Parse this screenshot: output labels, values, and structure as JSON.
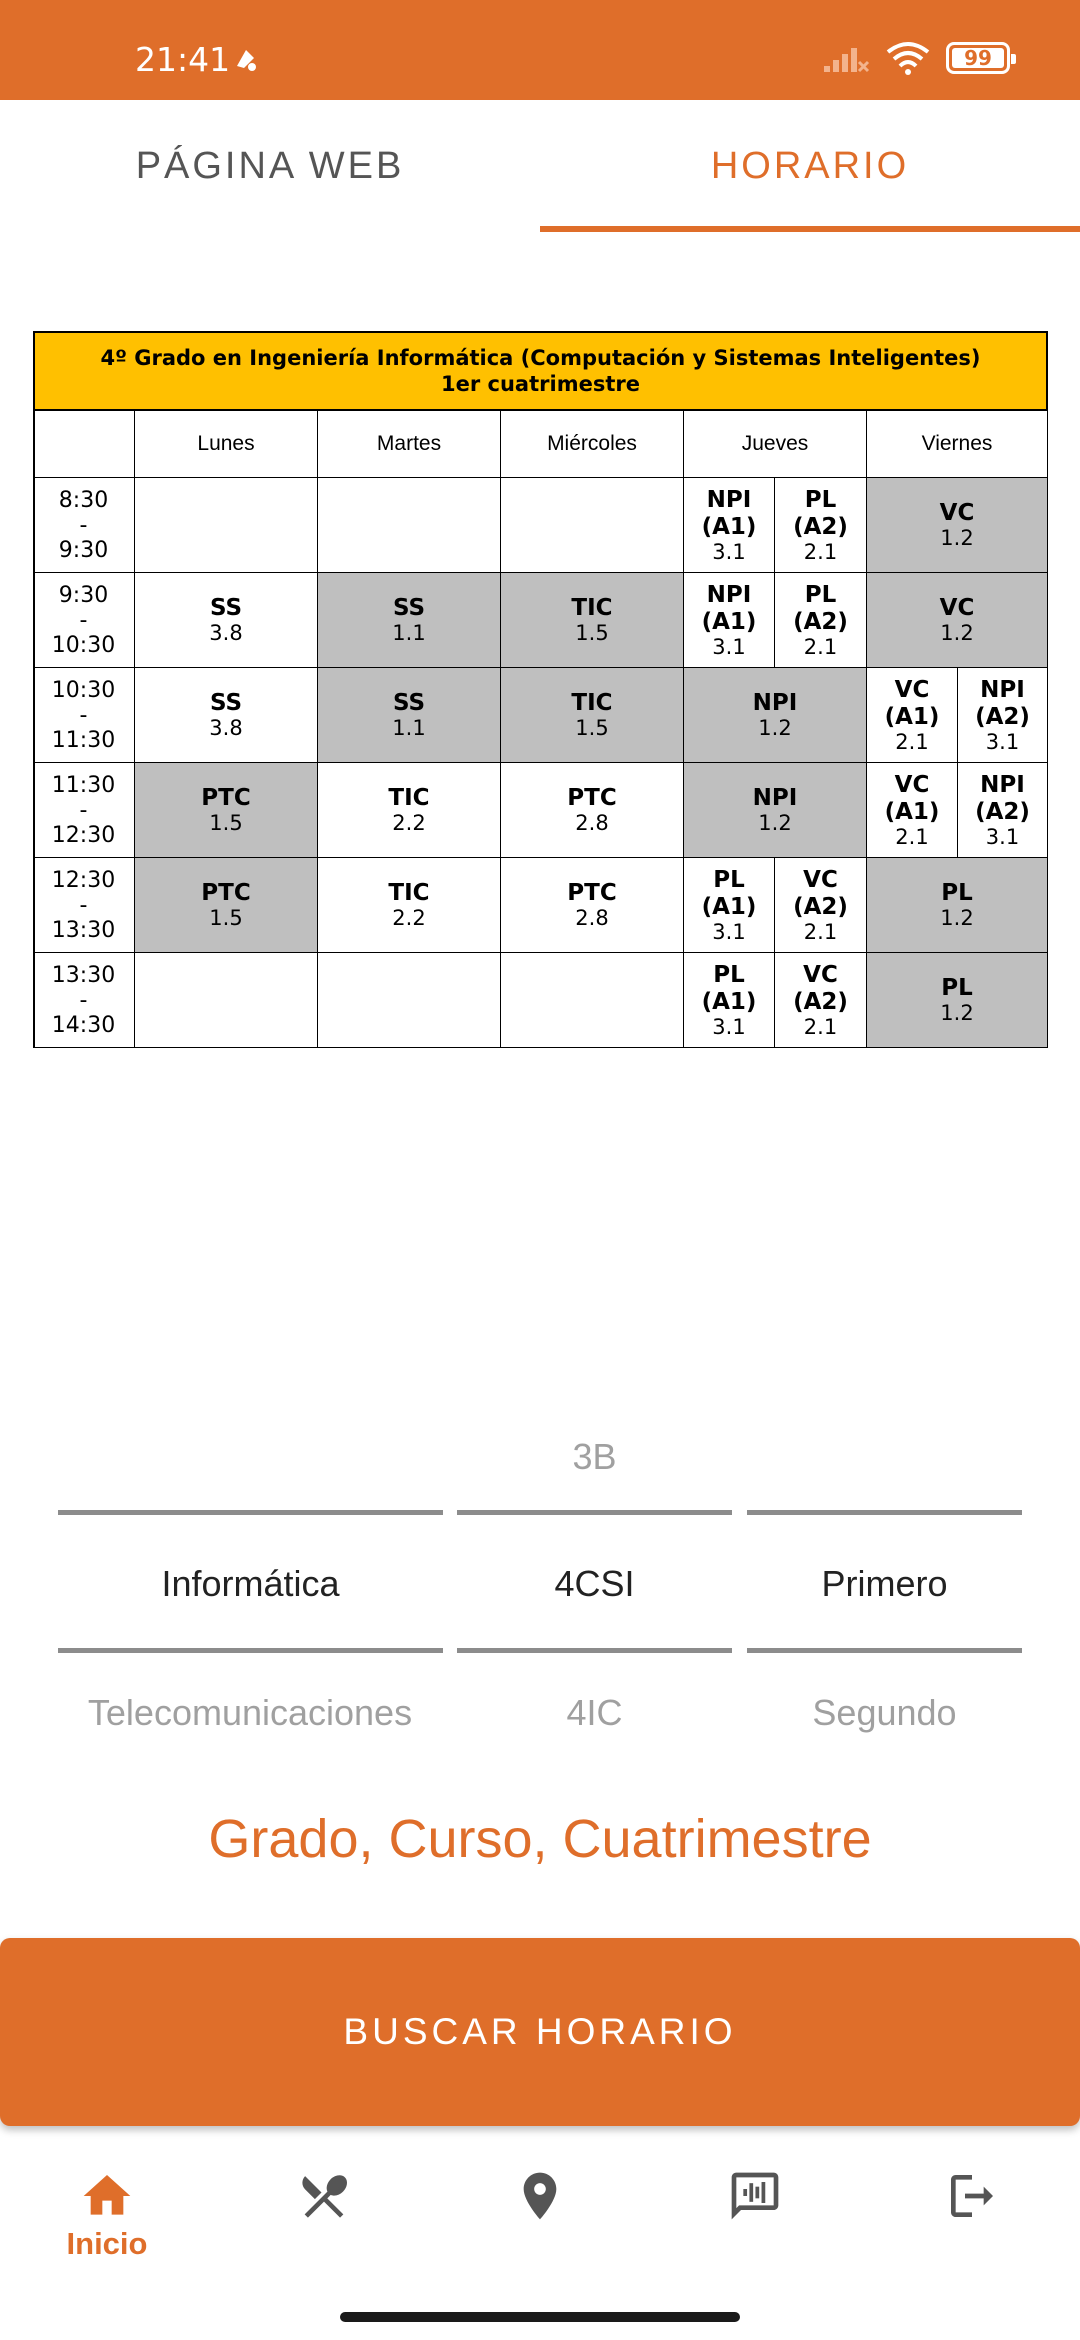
{
  "status_bar": {
    "time": "21:41",
    "battery": "99"
  },
  "tabs": [
    {
      "label": "PÁGINA WEB",
      "active": false
    },
    {
      "label": "HORARIO",
      "active": true
    }
  ],
  "schedule": {
    "title_line1": "4º Grado en Ingeniería  Informática  (Computación  y Sistemas Inteligentes)",
    "title_line2": "1er cuatrimestre",
    "days": [
      "Lunes",
      "Martes",
      "Miércoles",
      "Jueves",
      "Viernes"
    ],
    "times": [
      {
        "start": "8:30",
        "sep": "-",
        "end": "9:30"
      },
      {
        "start": "9:30",
        "sep": "-",
        "end": "10:30"
      },
      {
        "start": "10:30",
        "sep": "-",
        "end": "11:30"
      },
      {
        "start": "11:30",
        "sep": "-",
        "end": "12:30"
      },
      {
        "start": "12:30",
        "sep": "-",
        "end": "13:30"
      },
      {
        "start": "13:30",
        "sep": "-",
        "end": "14:30"
      }
    ],
    "rows": [
      [
        {
          "col": "lunes",
          "subj": "",
          "room": "",
          "gray": false
        },
        {
          "col": "martes",
          "subj": "",
          "room": "",
          "gray": false
        },
        {
          "col": "miercoles",
          "subj": "",
          "room": "",
          "gray": false
        },
        {
          "col": "jueves-a",
          "subj": "NPI\n(A1)",
          "room": "3.1",
          "gray": false
        },
        {
          "col": "jueves-b",
          "subj": "PL\n(A2)",
          "room": "2.1",
          "gray": false
        },
        {
          "col": "viernes",
          "subj": "VC",
          "room": "1.2",
          "gray": true
        }
      ],
      [
        {
          "col": "lunes",
          "subj": "SS",
          "room": "3.8",
          "gray": false
        },
        {
          "col": "martes",
          "subj": "SS",
          "room": "1.1",
          "gray": true
        },
        {
          "col": "miercoles",
          "subj": "TIC",
          "room": "1.5",
          "gray": true
        },
        {
          "col": "jueves-a",
          "subj": "NPI\n(A1)",
          "room": "3.1",
          "gray": false
        },
        {
          "col": "jueves-b",
          "subj": "PL\n(A2)",
          "room": "2.1",
          "gray": false
        },
        {
          "col": "viernes",
          "subj": "VC",
          "room": "1.2",
          "gray": true
        }
      ],
      [
        {
          "col": "lunes",
          "subj": "SS",
          "room": "3.8",
          "gray": false
        },
        {
          "col": "martes",
          "subj": "SS",
          "room": "1.1",
          "gray": true
        },
        {
          "col": "miercoles",
          "subj": "TIC",
          "room": "1.5",
          "gray": true
        },
        {
          "col": "jueves",
          "subj": "NPI",
          "room": "1.2",
          "gray": true
        },
        {
          "col": "viernes-a",
          "subj": "VC\n(A1)",
          "room": "2.1",
          "gray": false
        },
        {
          "col": "viernes-b",
          "subj": "NPI\n(A2)",
          "room": "3.1",
          "gray": false
        }
      ],
      [
        {
          "col": "lunes",
          "subj": "PTC",
          "room": "1.5",
          "gray": true
        },
        {
          "col": "martes",
          "subj": "TIC",
          "room": "2.2",
          "gray": false
        },
        {
          "col": "miercoles",
          "subj": "PTC",
          "room": "2.8",
          "gray": false
        },
        {
          "col": "jueves",
          "subj": "NPI",
          "room": "1.2",
          "gray": true
        },
        {
          "col": "viernes-a",
          "subj": "VC\n(A1)",
          "room": "2.1",
          "gray": false
        },
        {
          "col": "viernes-b",
          "subj": "NPI\n(A2)",
          "room": "3.1",
          "gray": false
        }
      ],
      [
        {
          "col": "lunes",
          "subj": "PTC",
          "room": "1.5",
          "gray": true
        },
        {
          "col": "martes",
          "subj": "TIC",
          "room": "2.2",
          "gray": false
        },
        {
          "col": "miercoles",
          "subj": "PTC",
          "room": "2.8",
          "gray": false
        },
        {
          "col": "jueves-a",
          "subj": "PL\n(A1)",
          "room": "3.1",
          "gray": false
        },
        {
          "col": "jueves-b",
          "subj": "VC\n(A2)",
          "room": "2.1",
          "gray": false
        },
        {
          "col": "viernes",
          "subj": "PL",
          "room": "1.2",
          "gray": true
        }
      ],
      [
        {
          "col": "lunes",
          "subj": "",
          "room": "",
          "gray": false
        },
        {
          "col": "martes",
          "subj": "",
          "room": "",
          "gray": false
        },
        {
          "col": "miercoles",
          "subj": "",
          "room": "",
          "gray": false
        },
        {
          "col": "jueves-a",
          "subj": "PL\n(A1)",
          "room": "3.1",
          "gray": false
        },
        {
          "col": "jueves-b",
          "subj": "VC\n(A2)",
          "room": "2.1",
          "gray": false
        },
        {
          "col": "viernes",
          "subj": "PL",
          "room": "1.2",
          "gray": true
        }
      ]
    ]
  },
  "pickers": {
    "grado": {
      "above": "",
      "selected": "Informática",
      "below": "Telecomunicaciones"
    },
    "curso": {
      "above": "3B",
      "selected": "4CSI",
      "below": "4IC"
    },
    "cuatrimestre": {
      "above": "",
      "selected": "Primero",
      "below": "Segundo"
    }
  },
  "section_label": "Grado, Curso, Cuatrimestre",
  "search_button": "BUSCAR HORARIO",
  "bottom_nav": [
    {
      "icon": "home-icon",
      "label": "Inicio",
      "active": true
    },
    {
      "icon": "restaurant-icon",
      "label": "",
      "active": false
    },
    {
      "icon": "location-pin-icon",
      "label": "",
      "active": false
    },
    {
      "icon": "voice-chat-icon",
      "label": "",
      "active": false
    },
    {
      "icon": "logout-icon",
      "label": "",
      "active": false
    }
  ],
  "colors": {
    "accent": "#DF6E2A",
    "highlight": "#FFC000",
    "gray_cell": "#BFBFBF"
  }
}
